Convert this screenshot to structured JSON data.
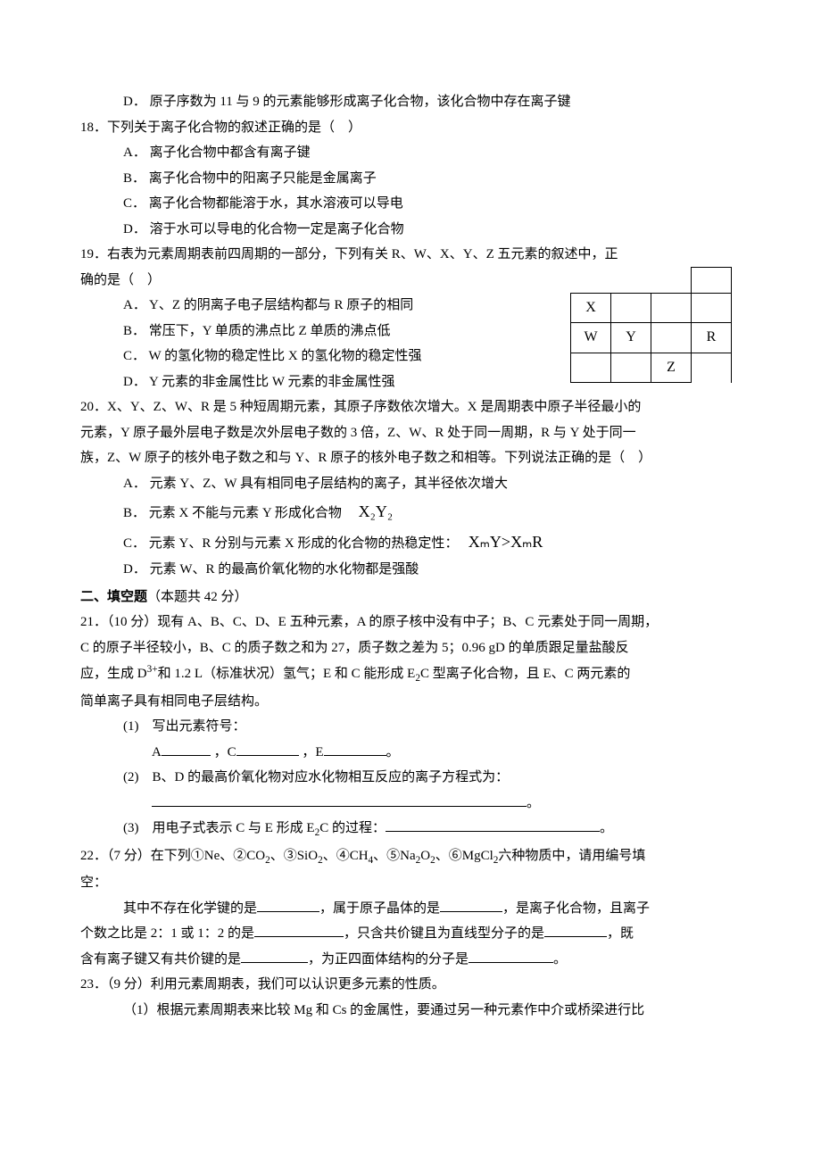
{
  "q17d": {
    "label": "D．",
    "text": "原子序数为 11 与 9 的元素能够形成离子化合物，该化合物中存在离子键"
  },
  "q18": {
    "stem": "18．下列关于离子化合物的叙述正确的是（　）",
    "a": {
      "label": "A．",
      "text": "离子化合物中都含有离子键"
    },
    "b": {
      "label": "B．",
      "text": "离子化合物中的阳离子只能是金属离子"
    },
    "c": {
      "label": "C．",
      "text": "离子化合物都能溶于水，其水溶液可以导电"
    },
    "d": {
      "label": "D．",
      "text": "溶于水可以导电的化合物一定是离子化合物"
    }
  },
  "q19": {
    "stem_a": "19．右表为元素周期表前四周期的一部分，下列有关 R、W、X、Y、Z 五元素的叙述中，正",
    "stem_b": "确的是（　）",
    "a": {
      "label": "A．",
      "text": "Y、Z 的阴离子电子层结构都与 R 原子的相同"
    },
    "b": {
      "label": "B．",
      "text": "常压下，Y 单质的沸点比 Z 单质的沸点低"
    },
    "c": {
      "label": "C．",
      "text": "W 的氢化物的稳定性比 X 的氢化物的稳定性强"
    },
    "d": {
      "label": "D．",
      "text": "Y 元素的非金属性比 W 元素的非金属性强"
    },
    "table": {
      "X": "X",
      "W": "W",
      "Y": "Y",
      "Z": "Z",
      "R": "R"
    }
  },
  "q20": {
    "stem_a": "20．X、Y、Z、W、R 是 5 种短周期元素，其原子序数依次增大。X 是周期表中原子半径最小的",
    "stem_b": "元素，Y 原子最外层电子数是次外层电子数的 3 倍，Z、W、R 处于同一周期，R 与 Y 处于同一",
    "stem_c": "族，Z、W 原子的核外电子数之和与 Y、R 原子的核外电子数之和相等。下列说法正确的是（　）",
    "a": {
      "label": "A．",
      "text": "元素 Y、Z、W 具有相同电子层结构的离子，其半径依次增大"
    },
    "b": {
      "label": "B．",
      "text": "元素 X 不能与元素 Y 形成化合物　",
      "formula": "X₂Y₂"
    },
    "c": {
      "label": "C．",
      "text": "元素 Y、R 分别与元素 X 形成的化合物的热稳定性：　",
      "f1": "XₘY>XₘR"
    },
    "d": {
      "label": "D．",
      "text": "元素 W、R 的最高价氧化物的水化物都是强酸"
    }
  },
  "sec2": {
    "title_a": "二、填空题",
    "title_b": "（本题共 42 分）"
  },
  "q21": {
    "stem_a": "21．（10 分）现有 A、B、C、D、E 五种元素，A 的原子核中没有中子；B、C 元素处于同一周期，",
    "stem_b": "C 的原子半径较小，B、C 的质子数之和为 27，质子数之差为 5；0.96 gD 的单质跟足量盐酸反",
    "stem_c_pre": "应，生成 D",
    "stem_c_sup": "3+",
    "stem_c_mid": "和 1.2 L（标准状况）氢气；E 和 C 能形成 E",
    "stem_c_sub": "2",
    "stem_c_post": "C 型离子化合物，且 E、C 两元素的",
    "stem_d": "简单离子具有相同电子层结构。",
    "p1": {
      "lead": "(1)　写出元素符号：",
      "A": "A",
      "C": "，C",
      "E": "，E",
      "dot": "。"
    },
    "p2": {
      "lead": "(2)　B、D 的最高价氧化物对应水化物相互反应的离子方程式为：",
      "dot": "。"
    },
    "p3": {
      "lead_a": "(3)　用电子式表示 C 与 E 形成 E",
      "sub": "2",
      "lead_b": "C 的过程：",
      "dot": "。"
    }
  },
  "q22": {
    "stem_a_pre": "22．（7 分）在下列①Ne、②CO",
    "s2a": "2",
    "mid1": "、③SiO",
    "s2b": "2",
    "mid2": "、④CH",
    "s4": "4",
    "mid3": "、⑤Na",
    "s2c": "2",
    "mid4": "O",
    "s2d": "2",
    "mid5": "、⑥MgCl",
    "s2e": "2",
    "stem_a_post": "六种物质中，请用编号填",
    "stem_b": "空：",
    "l1a": "其中不存在化学键的是",
    "l1b": "，属于原子晶体的是",
    "l1c": "，是离子化合物，且离子",
    "l2a": "个数之比是 2：1 或 1：2 的是",
    "l2b": "，只含共价键且为直线型分子的是",
    "l2c": "，既",
    "l3a": "含有离子键又有共价键的是",
    "l3b": "，为正四面体结构的分子是",
    "l3c": "。"
  },
  "q23": {
    "stem": "23．（9 分）利用元素周期表，我们可以认识更多元素的性质。",
    "p1": "（1）根据元素周期表来比较 Mg 和 Cs 的金属性，要通过另一种元素作中介或桥梁进行比"
  }
}
